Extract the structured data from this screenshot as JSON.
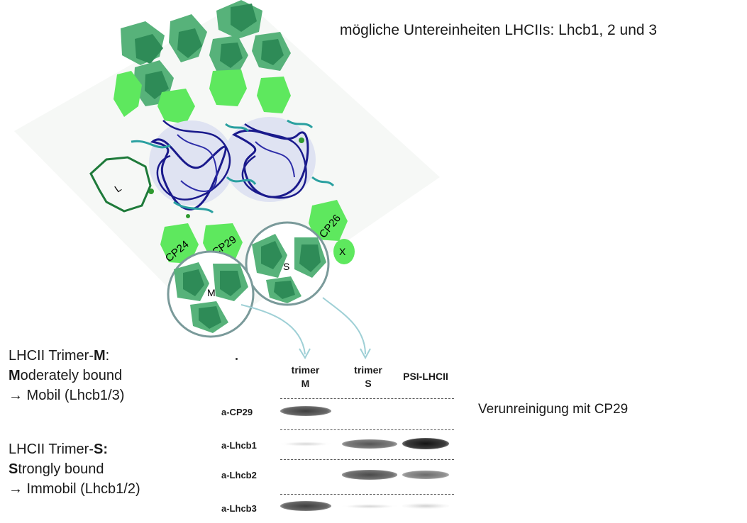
{
  "title": "mögliche Untereinheiten LHCIIs: Lhcb1, 2 und 3",
  "structure": {
    "labels": {
      "L": "L",
      "CP24": "CP24",
      "CP29": "CP29",
      "CP26": "CP26",
      "X": "X",
      "M": "M",
      "S": "S"
    },
    "colors": {
      "lhcii_dark": "#2e8b57",
      "lhcii_mid": "#57b27a",
      "minor_green": "#5ee85e",
      "core_blue": "#1a1a8c",
      "core_teal": "#2aa0a0",
      "circle": "#7a9a9a",
      "arrow": "#9fd0d6"
    }
  },
  "legend_m": {
    "line1_pre": "LHCII Trimer-",
    "line1_bold": "M",
    "line1_post": ":",
    "line2_bold": "M",
    "line2_rest": "oderately bound",
    "line3": "→ Mobil (Lhcb1/3)"
  },
  "legend_s": {
    "line1_pre": "LHCII Trimer-",
    "line1_bold": "S:",
    "line2_bold": "S",
    "line2_rest": "trongly bound",
    "line3": "→ Immobil (Lhcb1/2)"
  },
  "blot": {
    "columns": [
      {
        "line1": "trimer",
        "line2": "M"
      },
      {
        "line1": "trimer",
        "line2": "S"
      },
      {
        "line1": "PSI-LHCII",
        "line2": ""
      }
    ],
    "rows": [
      "a-CP29",
      "a-Lhcb1",
      "a-Lhcb2",
      "a-Lhcb3"
    ],
    "band_intensity": [
      [
        0.8,
        0.0,
        0.0
      ],
      [
        0.1,
        0.7,
        1.0
      ],
      [
        0.0,
        0.75,
        0.6
      ],
      [
        0.8,
        0.1,
        0.12
      ]
    ]
  },
  "note": "Verunreinigung mit CP29"
}
